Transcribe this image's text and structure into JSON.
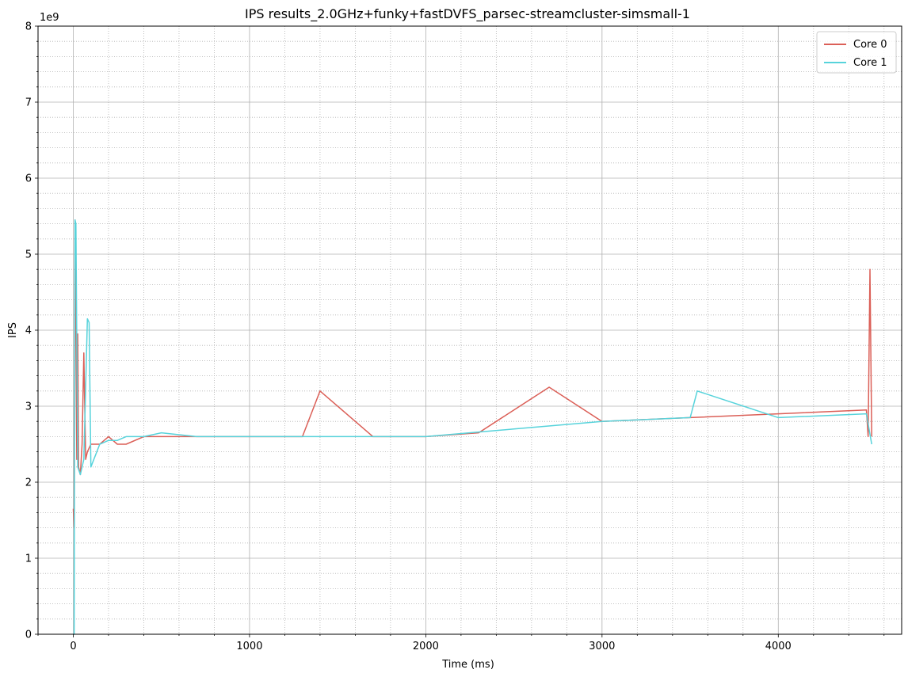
{
  "chart_data": {
    "type": "line",
    "title": "IPS results_2.0GHz+funky+fastDVFS_parsec-streamcluster-simsmall-1",
    "xlabel": "Time (ms)",
    "ylabel": "IPS",
    "y_offset_label": "1e9",
    "xlim": [
      -200,
      4700
    ],
    "ylim": [
      0,
      8
    ],
    "xticks": [
      0,
      1000,
      2000,
      3000,
      4000
    ],
    "yticks": [
      0,
      1,
      2,
      3,
      4,
      5,
      6,
      7,
      8
    ],
    "xtick_labels": [
      "0",
      "1000",
      "2000",
      "3000",
      "4000"
    ],
    "ytick_labels": [
      "0",
      "1",
      "2",
      "3",
      "4",
      "5",
      "6",
      "7",
      "8"
    ],
    "grid": "major solid, minor dotted",
    "legend_position": "top-right",
    "series": [
      {
        "name": "Core 0",
        "color": "#db5f57",
        "x": [
          0,
          5,
          10,
          15,
          20,
          25,
          30,
          40,
          50,
          60,
          70,
          80,
          100,
          150,
          200,
          250,
          300,
          400,
          500,
          700,
          1000,
          1300,
          1400,
          1700,
          2000,
          2300,
          2700,
          3000,
          3500,
          4000,
          4500,
          4510,
          4520,
          4530
        ],
        "values": [
          1.65,
          1.4,
          5.45,
          3.9,
          2.3,
          3.95,
          2.2,
          2.1,
          2.5,
          3.7,
          2.3,
          2.4,
          2.5,
          2.5,
          2.6,
          2.5,
          2.5,
          2.6,
          2.6,
          2.6,
          2.6,
          2.6,
          3.2,
          2.6,
          2.6,
          2.65,
          3.25,
          2.8,
          2.85,
          2.9,
          2.95,
          2.6,
          4.8,
          2.6
        ]
      },
      {
        "name": "Core 1",
        "color": "#57d3db",
        "x": [
          0,
          5,
          10,
          15,
          20,
          25,
          40,
          60,
          80,
          90,
          100,
          150,
          200,
          250,
          300,
          400,
          500,
          700,
          1000,
          1300,
          1500,
          2000,
          2500,
          3000,
          3500,
          3540,
          4000,
          4500,
          4530
        ],
        "values": [
          0,
          0,
          5.45,
          5.4,
          3.9,
          2.2,
          2.1,
          2.3,
          4.15,
          4.1,
          2.2,
          2.5,
          2.55,
          2.55,
          2.6,
          2.6,
          2.65,
          2.6,
          2.6,
          2.6,
          2.6,
          2.6,
          2.7,
          2.8,
          2.85,
          3.2,
          2.85,
          2.9,
          2.5
        ]
      }
    ]
  }
}
